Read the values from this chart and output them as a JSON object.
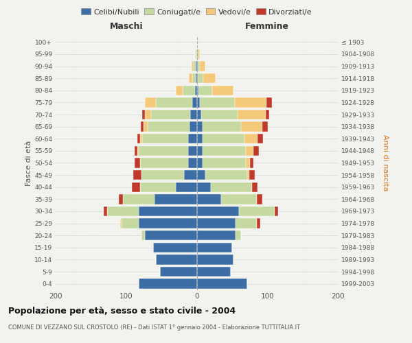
{
  "age_groups": [
    "100+",
    "95-99",
    "90-94",
    "85-89",
    "80-84",
    "75-79",
    "70-74",
    "65-69",
    "60-64",
    "55-59",
    "50-54",
    "45-49",
    "40-44",
    "35-39",
    "30-34",
    "25-29",
    "20-24",
    "15-19",
    "10-14",
    "5-9",
    "0-4"
  ],
  "birth_years": [
    "≤ 1903",
    "1904-1908",
    "1909-1913",
    "1914-1918",
    "1919-1923",
    "1924-1928",
    "1929-1933",
    "1934-1938",
    "1939-1943",
    "1944-1948",
    "1949-1953",
    "1954-1958",
    "1959-1963",
    "1964-1968",
    "1969-1973",
    "1974-1978",
    "1979-1983",
    "1984-1988",
    "1989-1993",
    "1994-1998",
    "1999-2003"
  ],
  "maschi": {
    "celibi": [
      0,
      0,
      1,
      1,
      2,
      6,
      9,
      10,
      12,
      12,
      12,
      18,
      30,
      60,
      82,
      82,
      73,
      62,
      58,
      52,
      82
    ],
    "coniugati": [
      0,
      1,
      3,
      5,
      18,
      52,
      56,
      60,
      65,
      70,
      68,
      60,
      50,
      45,
      45,
      25,
      5,
      0,
      0,
      0,
      0
    ],
    "vedovi": [
      0,
      1,
      3,
      5,
      10,
      15,
      8,
      5,
      3,
      2,
      0,
      0,
      0,
      0,
      0,
      2,
      0,
      0,
      0,
      0,
      0
    ],
    "divorziati": [
      0,
      0,
      0,
      0,
      0,
      0,
      4,
      4,
      4,
      4,
      8,
      12,
      12,
      5,
      5,
      0,
      0,
      0,
      0,
      0,
      0
    ]
  },
  "femmine": {
    "nubili": [
      0,
      0,
      1,
      1,
      2,
      4,
      6,
      8,
      8,
      8,
      8,
      12,
      20,
      35,
      60,
      55,
      55,
      50,
      52,
      48,
      72
    ],
    "coniugate": [
      0,
      2,
      3,
      8,
      20,
      50,
      52,
      55,
      60,
      62,
      62,
      60,
      58,
      50,
      50,
      30,
      8,
      0,
      0,
      0,
      0
    ],
    "vedove": [
      0,
      2,
      8,
      18,
      30,
      45,
      40,
      30,
      18,
      10,
      5,
      2,
      0,
      0,
      0,
      0,
      0,
      0,
      0,
      0,
      0
    ],
    "divorziate": [
      0,
      0,
      0,
      0,
      0,
      8,
      5,
      8,
      8,
      8,
      5,
      8,
      8,
      8,
      5,
      5,
      0,
      0,
      0,
      0,
      0
    ]
  },
  "colors": {
    "celibi_nubili": "#3c6ea5",
    "coniugati_e": "#c5d9a0",
    "vedovi_e": "#f5c97a",
    "divorziati_e": "#c0392b"
  },
  "xlim": 200,
  "title": "Popolazione per età, sesso e stato civile - 2004",
  "subtitle": "COMUNE DI VEZZANO SUL CROSTOLO (RE) - Dati ISTAT 1° gennaio 2004 - Elaborazione TUTTITALIA.IT",
  "ylabel_left": "Fasce di età",
  "ylabel_right": "Anni di nascita",
  "header_maschi": "Maschi",
  "header_femmine": "Femmine",
  "bg_color": "#f2f2ee",
  "grid_color": "#cccccc"
}
